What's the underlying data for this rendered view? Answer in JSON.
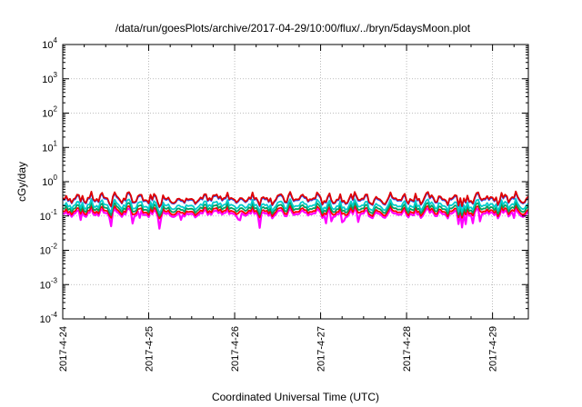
{
  "chart_data": {
    "type": "line",
    "title": "/data/run/goesPlots/archive/2017-04-29/10:00/flux/../bryn/5daysMoon.plot",
    "xlabel": "Coordinated Universal Time (UTC)",
    "ylabel": "cGy/day",
    "yscale": "log",
    "ylim": [
      0.0001,
      10000
    ],
    "xlim": [
      "2017-04-24 00:00",
      "2017-04-29 10:00"
    ],
    "grid": true,
    "legend": "none",
    "y_ticks": [
      {
        "value": 10000,
        "base": "10",
        "exp": "4"
      },
      {
        "value": 1000,
        "base": "10",
        "exp": "3"
      },
      {
        "value": 100,
        "base": "10",
        "exp": "2"
      },
      {
        "value": 10,
        "base": "10",
        "exp": "1"
      },
      {
        "value": 1,
        "base": "10",
        "exp": "0"
      },
      {
        "value": 0.1,
        "base": "10",
        "exp": "-1"
      },
      {
        "value": 0.01,
        "base": "10",
        "exp": "-2"
      },
      {
        "value": 0.001,
        "base": "10",
        "exp": "-3"
      },
      {
        "value": 0.0001,
        "base": "10",
        "exp": "-4"
      }
    ],
    "x_ticks": [
      "2017-4-24",
      "2017-4-25",
      "2017-4-26",
      "2017-4-27",
      "2017-4-28",
      "2017-4-29"
    ],
    "series": [
      {
        "color": "#ff00ff",
        "base": 0.12,
        "dips": true
      },
      {
        "color": "#ff0000",
        "base": 0.14,
        "dips": false
      },
      {
        "color": "#00a060",
        "base": 0.17,
        "dips": false
      },
      {
        "color": "#00cccc",
        "base": 0.21,
        "dips": false
      },
      {
        "color": "#1e50ff",
        "base": 0.31,
        "dips": false
      },
      {
        "color": "#e00000",
        "base": 0.33,
        "dips": false
      }
    ]
  }
}
